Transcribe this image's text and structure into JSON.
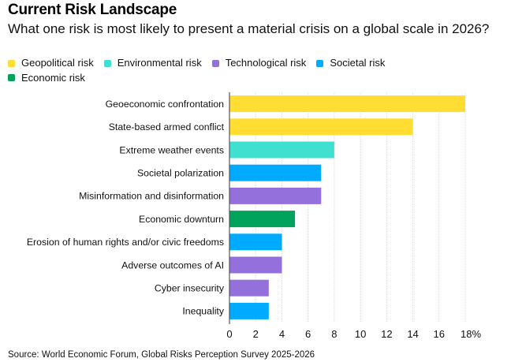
{
  "chart_data": {
    "type": "bar",
    "orientation": "horizontal",
    "title": "Current Risk Landscape",
    "subtitle": "What one risk is most likely to present a material crisis on a global scale in 2026?",
    "xlabel": "",
    "ylabel": "",
    "xlim": [
      0,
      18
    ],
    "x_ticks": [
      0,
      2,
      4,
      6,
      8,
      10,
      12,
      14,
      16,
      18
    ],
    "x_tick_labels": [
      "0",
      "2",
      "4",
      "6",
      "8",
      "10",
      "12",
      "14",
      "16",
      "18%"
    ],
    "grid": true,
    "legend_position": "top-left",
    "legend": [
      {
        "name": "Geopolitical risk",
        "color": "#FFDD33"
      },
      {
        "name": "Environmental risk",
        "color": "#40E0D0"
      },
      {
        "name": "Technological risk",
        "color": "#9370DB"
      },
      {
        "name": "Societal risk",
        "color": "#00AAFF"
      },
      {
        "name": "Economic risk",
        "color": "#00A35C"
      }
    ],
    "categories": [
      "Geoeconomic confrontation",
      "State-based armed conflict",
      "Extreme weather events",
      "Societal polarization",
      "Misinformation and disinformation",
      "Economic downturn",
      "Erosion of human rights and/or civic freedoms",
      "Adverse outcomes of AI",
      "Cyber insecurity",
      "Inequality"
    ],
    "values": [
      18,
      14,
      8,
      7,
      7,
      5,
      4,
      4,
      3,
      3
    ],
    "risk_types": [
      "Geopolitical risk",
      "Geopolitical risk",
      "Environmental risk",
      "Societal risk",
      "Technological risk",
      "Economic risk",
      "Societal risk",
      "Technological risk",
      "Technological risk",
      "Societal risk"
    ],
    "unit": "%"
  },
  "source": "Source: World Economic Forum, Global Risks Perception Survey 2025-2026"
}
